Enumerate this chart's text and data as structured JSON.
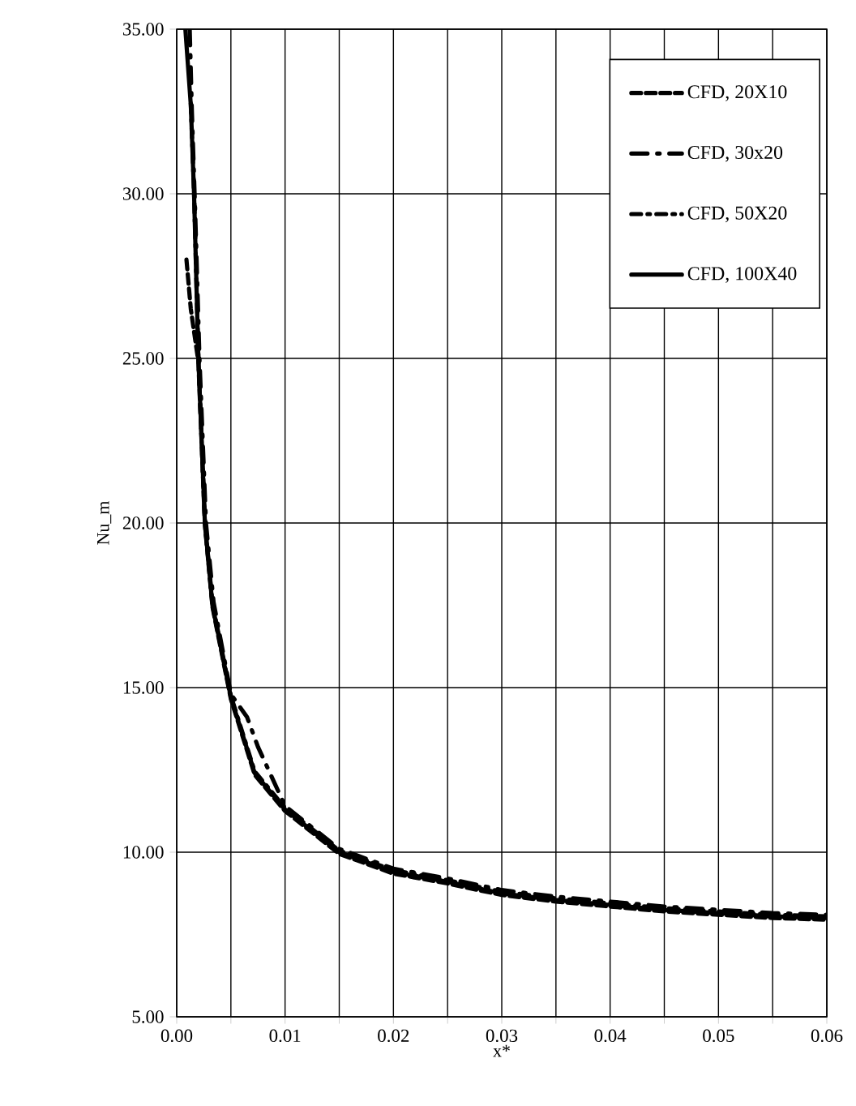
{
  "chart_data": {
    "type": "line",
    "xlabel": "x*",
    "ylabel": "Nu_m",
    "xlim": [
      0,
      0.06
    ],
    "ylim": [
      5,
      35
    ],
    "xticks": [
      {
        "value": 0,
        "label": "0.00"
      },
      {
        "value": 0.005,
        "label": null
      },
      {
        "value": 0.01,
        "label": "0.01"
      },
      {
        "value": 0.015,
        "label": null
      },
      {
        "value": 0.02,
        "label": "0.02"
      },
      {
        "value": 0.025,
        "label": null
      },
      {
        "value": 0.03,
        "label": "0.03"
      },
      {
        "value": 0.035,
        "label": null
      },
      {
        "value": 0.04,
        "label": "0.04"
      },
      {
        "value": 0.045,
        "label": null
      },
      {
        "value": 0.05,
        "label": "0.05"
      },
      {
        "value": 0.055,
        "label": null
      },
      {
        "value": 0.06,
        "label": "0.06"
      }
    ],
    "yticks": [
      {
        "value": 5,
        "label": "5.00"
      },
      {
        "value": 10,
        "label": "10.00"
      },
      {
        "value": 15,
        "label": "15.00"
      },
      {
        "value": 20,
        "label": "20.00"
      },
      {
        "value": 25,
        "label": "25.00"
      },
      {
        "value": 30,
        "label": "30.00"
      },
      {
        "value": 35,
        "label": "35.00"
      }
    ],
    "grid": true,
    "legend": "top right",
    "series": [
      {
        "name": "CFD, 20X10",
        "color": "#000000",
        "line_style": "dashed",
        "x": [
          0.0009,
          0.0013,
          0.002,
          0.0026,
          0.0033,
          0.005,
          0.0072,
          0.01,
          0.015,
          0.02,
          0.025,
          0.03,
          0.035,
          0.04,
          0.045,
          0.05,
          0.055,
          0.06
        ],
        "values": [
          28.0,
          26.5,
          24.9,
          19.95,
          17.45,
          14.65,
          12.35,
          11.25,
          9.95,
          9.35,
          9.05,
          8.7,
          8.5,
          8.35,
          8.2,
          8.1,
          8.0,
          7.95
        ]
      },
      {
        "name": "CFD, 30x20",
        "color": "#000000",
        "line_style": "longdashdot",
        "x": [
          0.0012,
          0.0014,
          0.0017,
          0.0021,
          0.0027,
          0.0034,
          0.005,
          0.0065,
          0.0075,
          0.01,
          0.015,
          0.02,
          0.025,
          0.03,
          0.035,
          0.04,
          0.045,
          0.05,
          0.055,
          0.06
        ],
        "values": [
          35.0,
          32.5,
          29.5,
          25.0,
          20.0,
          17.6,
          14.8,
          14.1,
          13.2,
          11.4,
          10.1,
          9.5,
          9.2,
          8.85,
          8.65,
          8.5,
          8.35,
          8.25,
          8.15,
          8.1
        ]
      },
      {
        "name": "CFD, 50X20",
        "color": "#000000",
        "line_style": "dashdot",
        "x": [
          0.0013,
          0.0016,
          0.002,
          0.0026,
          0.0033,
          0.005,
          0.0072,
          0.01,
          0.015,
          0.02,
          0.025,
          0.03,
          0.035,
          0.04,
          0.045,
          0.05,
          0.055,
          0.06
        ],
        "values": [
          32.75,
          30.05,
          25.05,
          20.05,
          17.55,
          14.75,
          12.45,
          11.35,
          10.05,
          9.45,
          9.15,
          8.8,
          8.6,
          8.45,
          8.3,
          8.2,
          8.1,
          8.05
        ]
      },
      {
        "name": "CFD, 100X40",
        "color": "#000000",
        "line_style": "solid",
        "x": [
          0.0008,
          0.0013,
          0.0016,
          0.002,
          0.0026,
          0.0033,
          0.005,
          0.0072,
          0.01,
          0.015,
          0.02,
          0.025,
          0.03,
          0.035,
          0.04,
          0.045,
          0.05,
          0.055,
          0.06
        ],
        "values": [
          35.0,
          32.7,
          30.0,
          25.0,
          20.0,
          17.5,
          14.7,
          12.4,
          11.3,
          10.0,
          9.4,
          9.1,
          8.75,
          8.55,
          8.4,
          8.25,
          8.15,
          8.05,
          8.0
        ]
      }
    ]
  }
}
